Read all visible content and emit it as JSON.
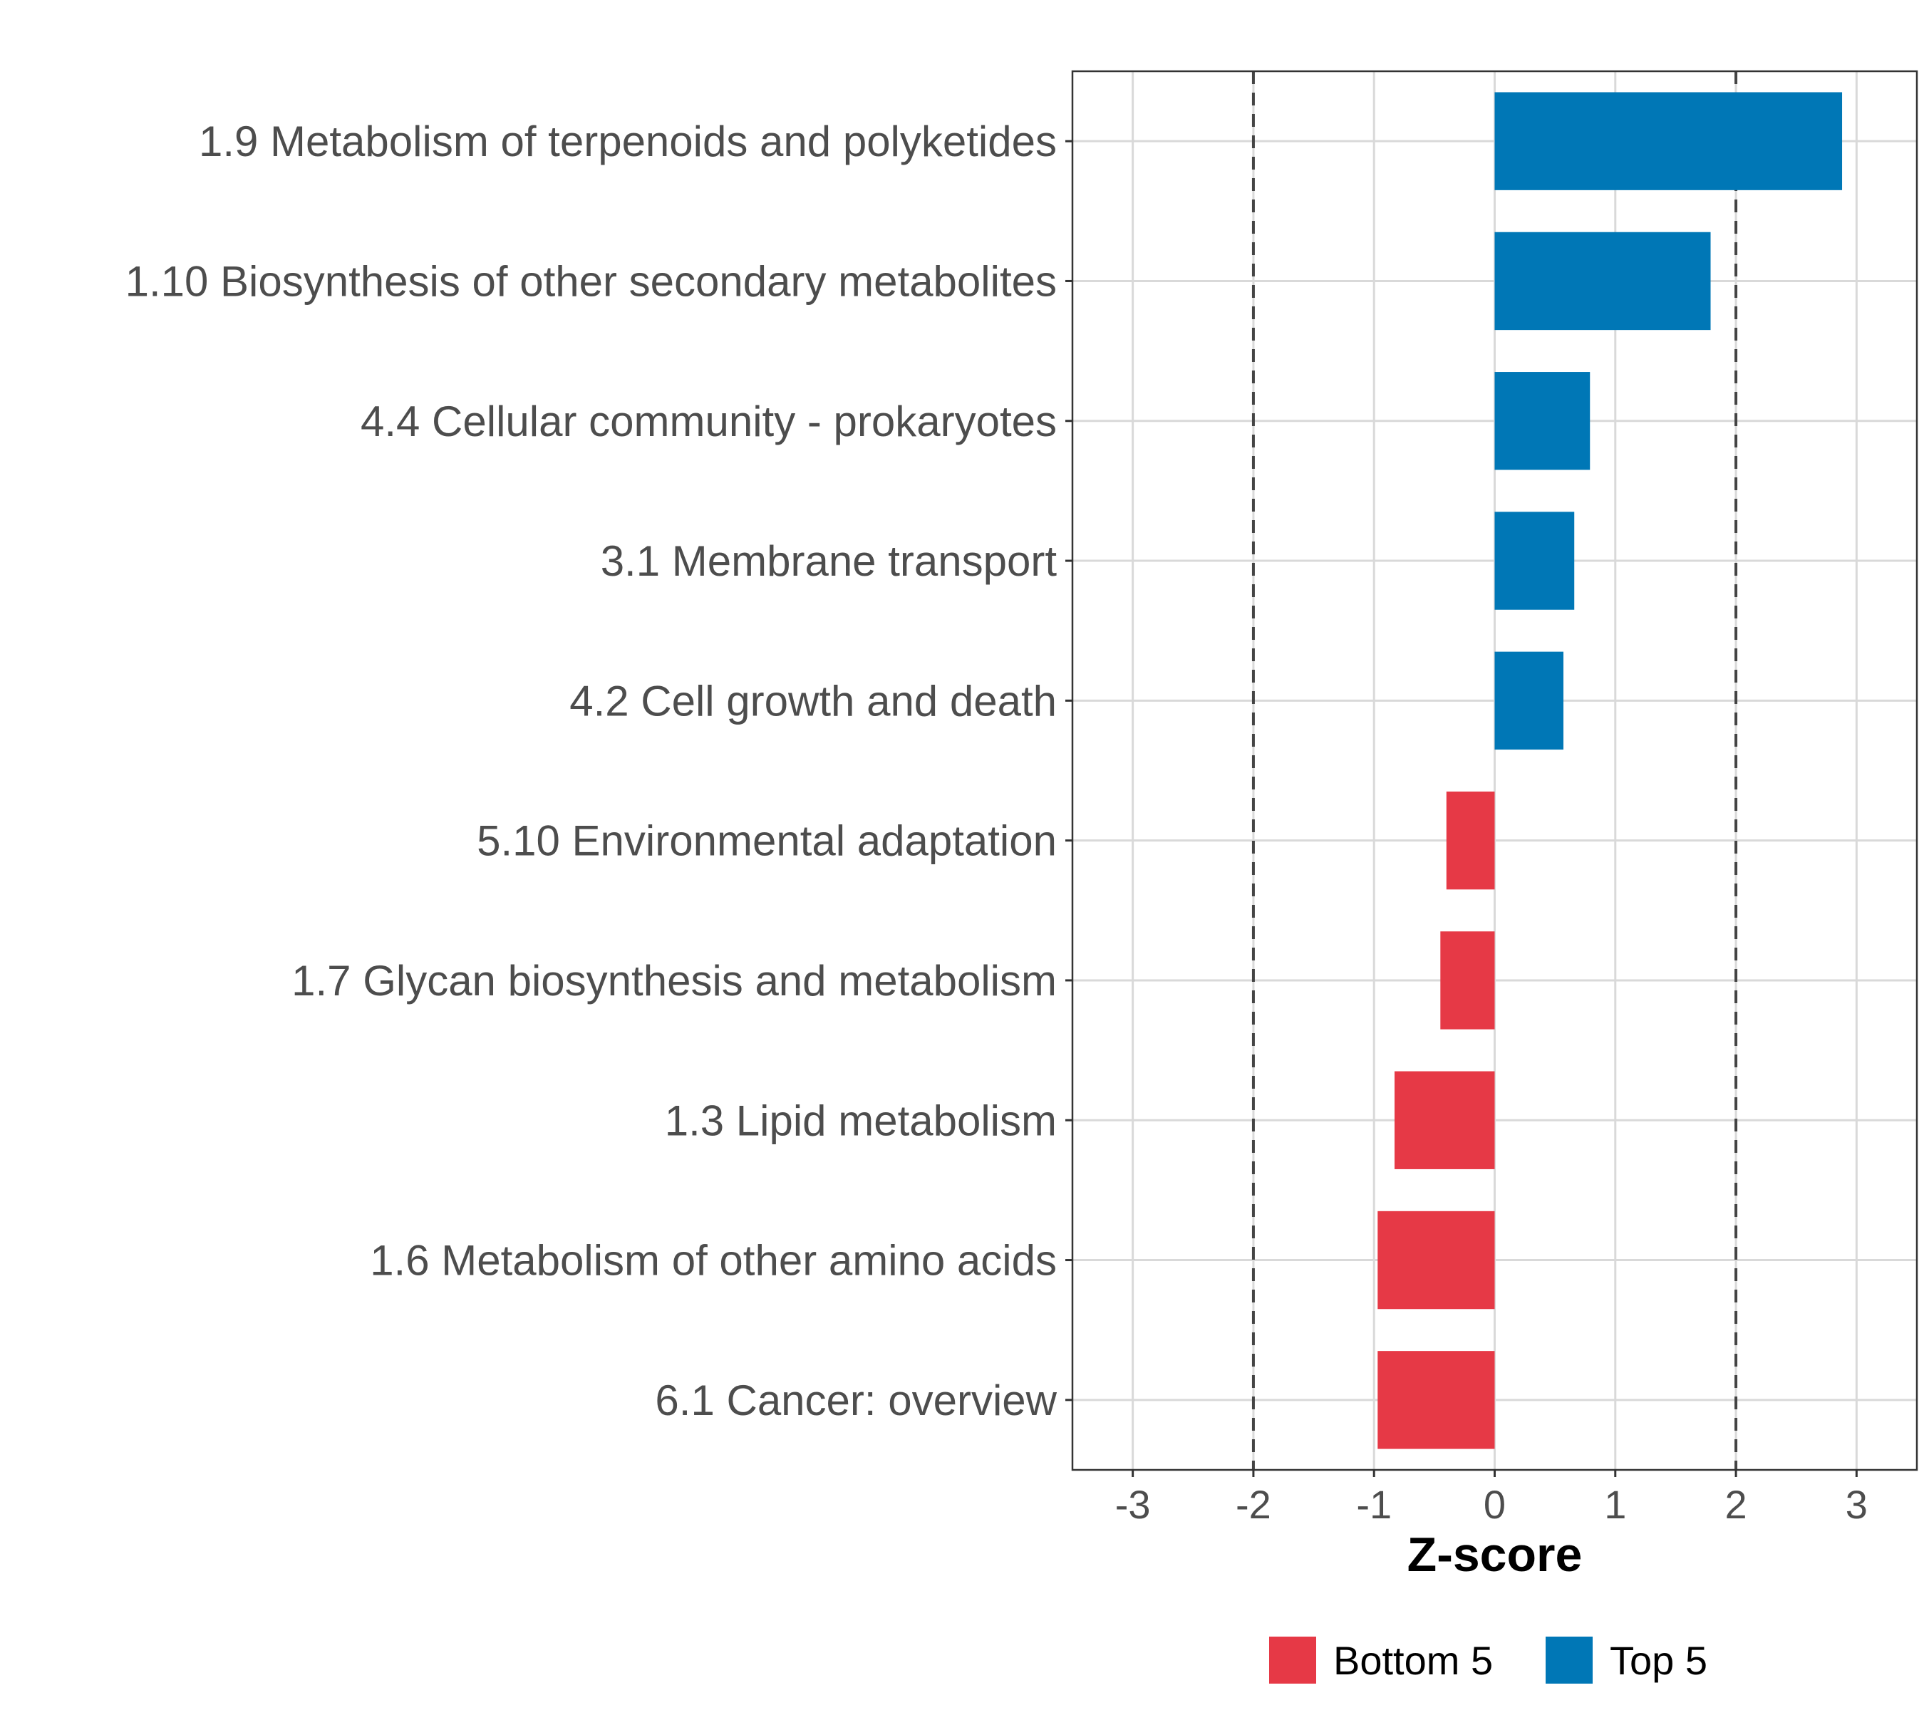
{
  "chart_data": {
    "type": "bar",
    "orientation": "horizontal",
    "title": "",
    "xlabel": "Z-score",
    "ylabel": "",
    "xlim": [
      -3.5,
      3.5
    ],
    "xticks": [
      -3,
      -2,
      -1,
      0,
      1,
      2,
      3
    ],
    "reference_lines": [
      -2,
      2
    ],
    "grid": true,
    "legend_position": "bottom",
    "categories": [
      "1.9 Metabolism of terpenoids and polyketides",
      "1.10 Biosynthesis of other secondary metabolites",
      "4.4 Cellular community - prokaryotes",
      "3.1 Membrane transport",
      "4.2 Cell growth and death",
      "5.10 Environmental adaptation",
      "1.7 Glycan biosynthesis and metabolism",
      "1.3 Lipid metabolism",
      "1.6 Metabolism of other amino acids",
      "6.1 Cancer: overview"
    ],
    "values": [
      2.88,
      1.79,
      0.79,
      0.66,
      0.57,
      -0.4,
      -0.45,
      -0.83,
      -0.97,
      -0.97
    ],
    "groups": [
      "Top 5",
      "Top 5",
      "Top 5",
      "Top 5",
      "Top 5",
      "Bottom 5",
      "Bottom 5",
      "Bottom 5",
      "Bottom 5",
      "Bottom 5"
    ],
    "legend": [
      {
        "name": "Bottom 5",
        "color": "#e63946"
      },
      {
        "name": "Top 5",
        "color": "#0077b6"
      }
    ]
  }
}
